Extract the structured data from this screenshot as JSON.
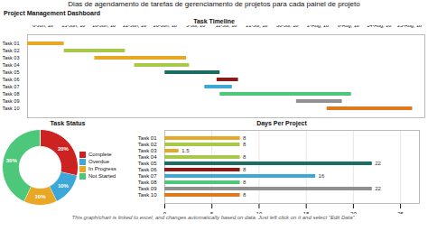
{
  "title": "Dias de agendamento de tarefas de gerenciamento de projetos para cada painel de projeto",
  "subtitle": "Project Management Dashboard",
  "annotations": [
    "This graph/chart is linked to excel, and changes automatically based on data. Just left click on it and select \"Edit Data\"."
  ],
  "chart_data": [
    {
      "type": "gantt",
      "title": "Task Timeline",
      "orientation": "horizontal",
      "categories": [
        "Task 01",
        "Task 02",
        "Task 03",
        "Task 04",
        "Task 05",
        "Task 06",
        "Task 07",
        "Task 08",
        "Task 09",
        "Task 10"
      ],
      "starts": [
        0,
        1.2,
        2.2,
        3.5,
        4.5,
        6.2,
        5.8,
        6.3,
        8.8,
        9.8
      ],
      "durations": [
        1.2,
        2.0,
        3.0,
        1.8,
        1.8,
        0.7,
        0.9,
        4.3,
        1.5,
        2.8
      ],
      "colors": [
        "#E8A825",
        "#A8C84A",
        "#E8A825",
        "#A8C84A",
        "#1A6E60",
        "#8B1A1A",
        "#3DA8D8",
        "#4DC87A",
        "#909090",
        "#E07820"
      ],
      "xlim": [
        0,
        13
      ],
      "xticks": [
        {
          "value": 0.5,
          "label": "6-Jun, 18"
        },
        {
          "value": 1.5,
          "label": "13-Jun, 18"
        },
        {
          "value": 2.5,
          "label": "18-Jun, 18"
        },
        {
          "value": 3.5,
          "label": "22-Jun, 18"
        },
        {
          "value": 4.5,
          "label": "26-Jun, 18"
        },
        {
          "value": 5.5,
          "label": "5-Jul, 18"
        },
        {
          "value": 6.5,
          "label": "11-Jul, 18"
        },
        {
          "value": 7.5,
          "label": "21-Jul, 18"
        },
        {
          "value": 8.5,
          "label": "30-Jul, 18"
        },
        {
          "value": 9.5,
          "label": "2-Aug, 18"
        },
        {
          "value": 10.5,
          "label": "8-Aug, 18"
        },
        {
          "value": 11.5,
          "label": "14-Aug, 18"
        },
        {
          "value": 12.5,
          "label": "25-Aug, 18"
        }
      ]
    },
    {
      "type": "pie",
      "title": "Task Status",
      "categories": [
        "Complete",
        "Overdue",
        "In Progress",
        "Not Started"
      ],
      "values": [
        20,
        10,
        10,
        30
      ],
      "value_labels": [
        "20%",
        "10%",
        "10%",
        "30%"
      ],
      "colors": [
        "#CC2222",
        "#3DA8D8",
        "#E8A825",
        "#4DC87A"
      ],
      "data_labels": true,
      "legend": "right"
    },
    {
      "type": "bar",
      "orientation": "horizontal",
      "title": "Days Per Project",
      "categories": [
        "Task 01",
        "Task 02",
        "Task 03",
        "Task 04",
        "Task 05",
        "Task 06",
        "Task 07",
        "Task 08",
        "Task 09",
        "Task 10"
      ],
      "values": [
        8,
        8,
        1.5,
        8,
        22,
        8,
        16,
        8,
        22,
        8
      ],
      "colors": [
        "#E8A825",
        "#A8C84A",
        "#E8A825",
        "#A8C84A",
        "#1A6E60",
        "#8B1A1A",
        "#3DA8D8",
        "#4DC87A",
        "#909090",
        "#E07820"
      ],
      "xlim": [
        0,
        27
      ],
      "xticks": [
        0,
        5,
        10,
        15,
        20,
        25
      ],
      "grid": true,
      "data_labels": true
    }
  ]
}
